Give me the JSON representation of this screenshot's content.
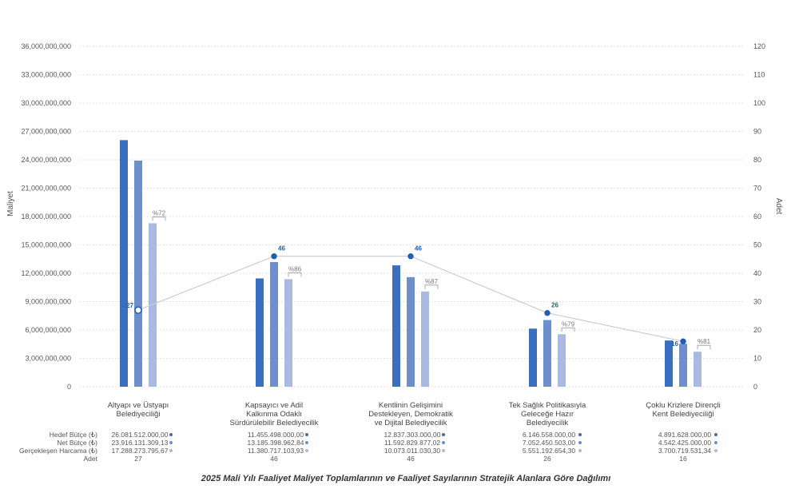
{
  "chart_data": {
    "type": "bar",
    "title": "2025 Mali Yılı Faaliyet Maliyet Toplamlarının ve Faaliyet Sayılarının Stratejik Alanlara Göre Dağılımı",
    "ylabel": "Maliyet",
    "y2label": "Adet",
    "ylim": [
      0,
      36000000000
    ],
    "y2lim": [
      0,
      120
    ],
    "y_ticks": [
      "36,000,000,000",
      "33,000,000,000",
      "30,000,000,000",
      "27,000,000,000",
      "24,000,000,000",
      "21,000,000,000",
      "18,000,000,000",
      "15,000,000,000",
      "12,000,000,000",
      "9,000,000,000",
      "6,000,000,000",
      "3,000,000,000",
      "0"
    ],
    "y2_ticks": [
      "120",
      "110",
      "100",
      "90",
      "80",
      "70",
      "60",
      "50",
      "40",
      "30",
      "20",
      "10",
      "0"
    ],
    "grid": true,
    "categories": [
      [
        "Altyapı ve Üstyapı",
        "Belediyeciliği"
      ],
      [
        "Kapsayıcı ve Adil",
        "Kalkınma Odaklı",
        "Sürdürülebilir Belediyecilik"
      ],
      [
        "Kentlinin Gelişimini",
        "Destekleyen, Demokratik",
        "ve Dijital Belediyecilik"
      ],
      [
        "Tek Sağlık Politikasıyla",
        "Geleceğe Hazır",
        "Belediyecilik"
      ],
      [
        "Çoklu Krizlere Dirençli",
        "Kent Belediyeciliği"
      ]
    ],
    "series": [
      {
        "name": "Hedef Bütçe (₺)",
        "color": "#3a6fbf",
        "values": [
          26081512000,
          11455498000,
          12837303000,
          6146558000,
          4891628000
        ],
        "labels": [
          "26.081.512.000,00",
          "11.455.498.000,00",
          "12.837.303.000,00",
          "6.146.558.000,00",
          "4.891.628.000,00"
        ]
      },
      {
        "name": "Net Bütçe (₺)",
        "color": "#6e8fcb",
        "values": [
          23916131309.13,
          13185398962.84,
          11592829877.02,
          7052450503.0,
          4542425000.0
        ],
        "labels": [
          "23.916.131.309,13",
          "13.185.398.962,84",
          "11.592.829.877,02",
          "7.052.450.503,00",
          "4.542.425.000,00"
        ]
      },
      {
        "name": "Gerçekleşen Harcama (₺)",
        "color": "#a9b9e2",
        "values": [
          17288273795.67,
          11380717103.93,
          10073011030.3,
          5551192654.3,
          3700719531.34
        ],
        "labels": [
          "17.288.273.795,67",
          "11.380.717.103,93",
          "10.073.011.030,30",
          "5.551.192.654,30",
          "3.700.719.531,34"
        ]
      }
    ],
    "percent_labels": [
      "%72",
      "%86",
      "%87",
      "%79",
      "%81"
    ],
    "line_series": {
      "name": "Adet",
      "color": "#1f5fad",
      "values": [
        27,
        46,
        46,
        26,
        16
      ],
      "labels": [
        "27",
        "46",
        "46",
        "26",
        "16"
      ]
    }
  }
}
